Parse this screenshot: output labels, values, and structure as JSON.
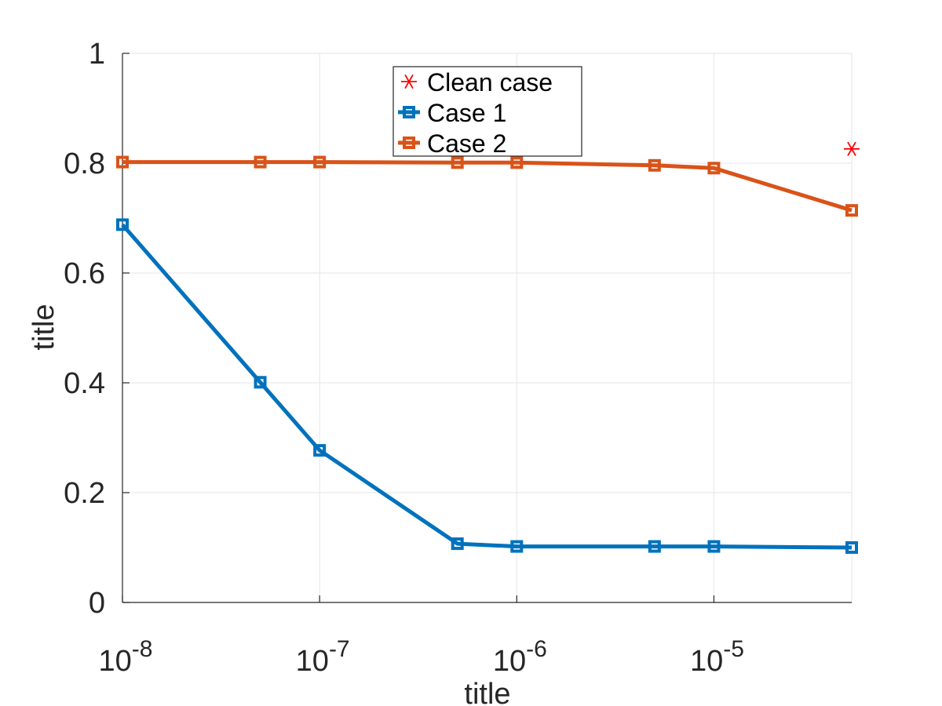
{
  "chart_data": {
    "type": "line",
    "title": "",
    "xlabel": "title",
    "ylabel": "title",
    "xscale": "log",
    "xlim": [
      1e-08,
      5e-05
    ],
    "ylim": [
      0,
      1
    ],
    "grid": true,
    "x_ticks": [
      {
        "value": 1e-08,
        "base": "10",
        "exp": "-8"
      },
      {
        "value": 1e-07,
        "base": "10",
        "exp": "-7"
      },
      {
        "value": 1e-06,
        "base": "10",
        "exp": "-6"
      },
      {
        "value": 1e-05,
        "base": "10",
        "exp": "-5"
      }
    ],
    "y_ticks": [
      {
        "value": 0,
        "label": "0"
      },
      {
        "value": 0.2,
        "label": "0.2"
      },
      {
        "value": 0.4,
        "label": "0.4"
      },
      {
        "value": 0.6,
        "label": "0.6"
      },
      {
        "value": 0.8,
        "label": "0.8"
      },
      {
        "value": 1,
        "label": "1"
      }
    ],
    "legend_position": "top-center",
    "series": [
      {
        "name": "Clean case",
        "color": "#ff0000",
        "style": "marker-only",
        "marker": "asterisk",
        "x": [
          5e-05
        ],
        "y": [
          0.826
        ]
      },
      {
        "name": "Case 1",
        "color": "#0072bd",
        "style": "line-marker",
        "marker": "square",
        "x": [
          1e-08,
          5e-08,
          1e-07,
          5e-07,
          1e-06,
          5e-06,
          1e-05,
          5e-05
        ],
        "y": [
          0.688,
          0.401,
          0.277,
          0.107,
          0.102,
          0.102,
          0.102,
          0.1
        ]
      },
      {
        "name": "Case 2",
        "color": "#d95319",
        "style": "line-marker",
        "marker": "square",
        "x": [
          1e-08,
          5e-08,
          1e-07,
          5e-07,
          1e-06,
          5e-06,
          1e-05,
          5e-05
        ],
        "y": [
          0.802,
          0.802,
          0.802,
          0.801,
          0.801,
          0.796,
          0.791,
          0.714
        ]
      }
    ]
  }
}
